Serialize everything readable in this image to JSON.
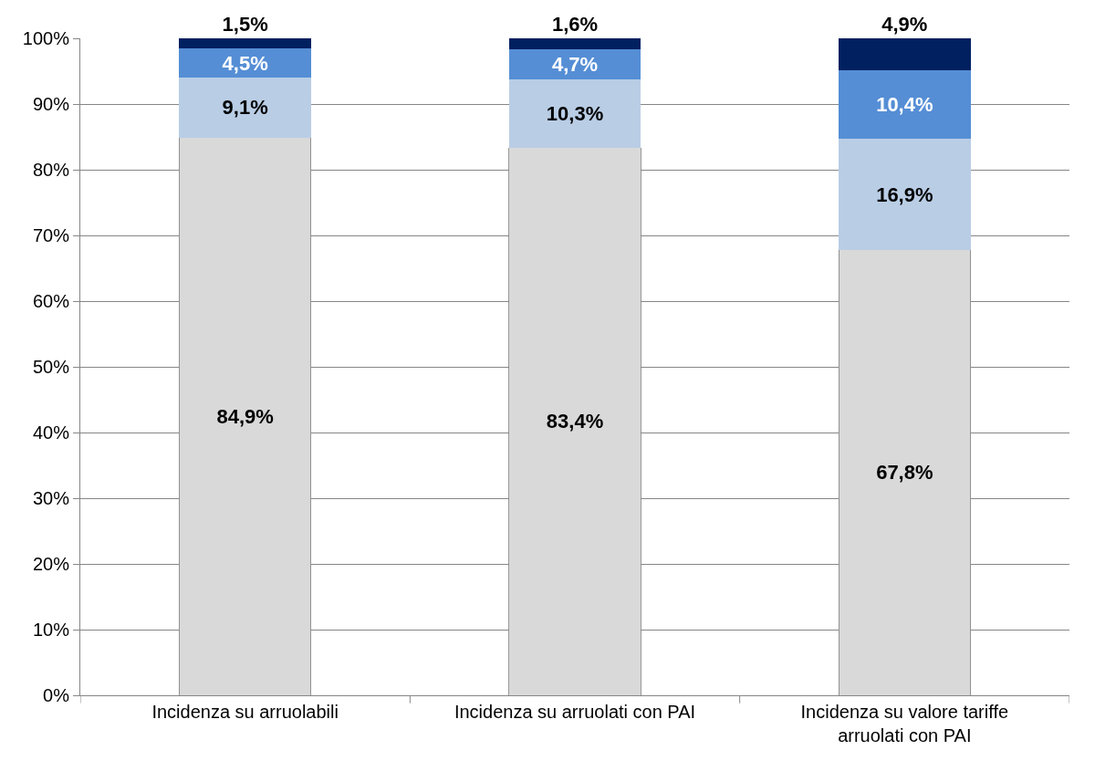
{
  "chart_data": {
    "type": "bar",
    "stacked": true,
    "categories": [
      "Incidenza su arruolabili",
      "Incidenza su arruolati con PAI",
      "Incidenza su valore tariffe arruolati con PAI"
    ],
    "series": [
      {
        "color": "#d9d9d9",
        "values": [
          84.9,
          83.4,
          67.8
        ],
        "value_labels": [
          "84,9%",
          "83,4%",
          "67,8%"
        ]
      },
      {
        "color": "#b9cde5",
        "values": [
          9.1,
          10.3,
          16.9
        ],
        "value_labels": [
          "9,1%",
          "10,3%",
          "16,9%"
        ]
      },
      {
        "color": "#558ed5",
        "values": [
          4.5,
          4.7,
          10.4
        ],
        "value_labels": [
          "4,5%",
          "4,7%",
          "10,4%"
        ]
      },
      {
        "color": "#002060",
        "values": [
          1.5,
          1.6,
          4.9
        ],
        "value_labels": [
          "1,5%",
          "1,6%",
          "4,9%"
        ]
      }
    ],
    "ylim": [
      0,
      100
    ],
    "yticks": [
      {
        "value": 0,
        "label": "0%"
      },
      {
        "value": 10,
        "label": "10%"
      },
      {
        "value": 20,
        "label": "20%"
      },
      {
        "value": 30,
        "label": "30%"
      },
      {
        "value": 40,
        "label": "40%"
      },
      {
        "value": 50,
        "label": "50%"
      },
      {
        "value": 60,
        "label": "60%"
      },
      {
        "value": 70,
        "label": "70%"
      },
      {
        "value": 80,
        "label": "80%"
      },
      {
        "value": 90,
        "label": "90%"
      },
      {
        "value": 100,
        "label": "100%"
      }
    ],
    "grid": "y"
  }
}
